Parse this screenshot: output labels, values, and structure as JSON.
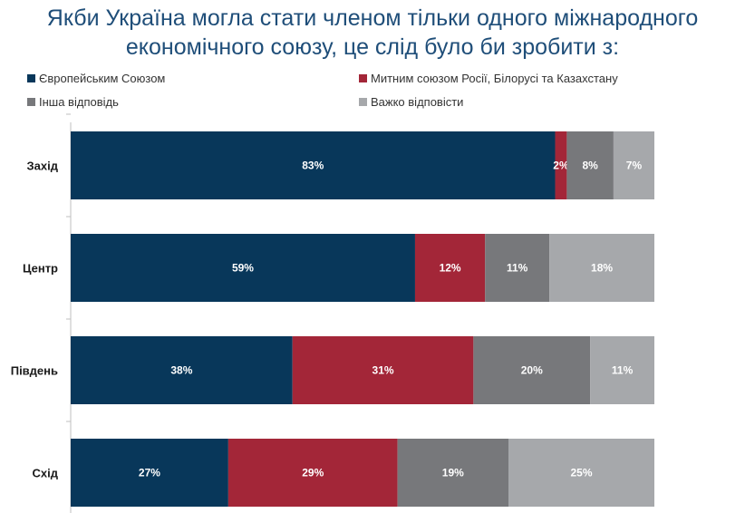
{
  "title": {
    "line1": "Якби Україна могла стати членом тільки одного міжнародного",
    "line2": "економічного союзу, це слід було би зробити з:"
  },
  "legend": [
    {
      "label": "Європейським Союзом",
      "color": "#08375a"
    },
    {
      "label": "Митним союзом Росії, Білорусі та Казахстану",
      "color": "#a32638"
    },
    {
      "label": "Інша відповідь",
      "color": "#77787b"
    },
    {
      "label": "Важко відповісти",
      "color": "#a6a8ab"
    }
  ],
  "chart_data": {
    "type": "bar",
    "orientation": "horizontal",
    "stacked": true,
    "categories": [
      "Захід",
      "Центр",
      "Південь",
      "Схід"
    ],
    "series": [
      {
        "name": "Європейським Союзом",
        "color": "#08375a",
        "values": [
          83,
          59,
          38,
          27
        ],
        "labels": [
          "83%",
          "59%",
          "38%",
          "27%"
        ]
      },
      {
        "name": "Митним союзом Росії, Білорусі та Казахстану",
        "color": "#a32638",
        "values": [
          2,
          12,
          31,
          29
        ],
        "labels": [
          "2%",
          "12%",
          "31%",
          "29%"
        ]
      },
      {
        "name": "Інша відповідь",
        "color": "#77787b",
        "values": [
          8,
          11,
          20,
          19
        ],
        "labels": [
          "8%",
          "11%",
          "20%",
          "19%"
        ]
      },
      {
        "name": "Важко відповісти",
        "color": "#a6a8ab",
        "values": [
          7,
          18,
          11,
          25
        ],
        "labels": [
          "7%",
          "18%",
          "11%",
          "25%"
        ]
      }
    ],
    "xlim": [
      0,
      100
    ],
    "legend_position": "top",
    "grid": false
  }
}
